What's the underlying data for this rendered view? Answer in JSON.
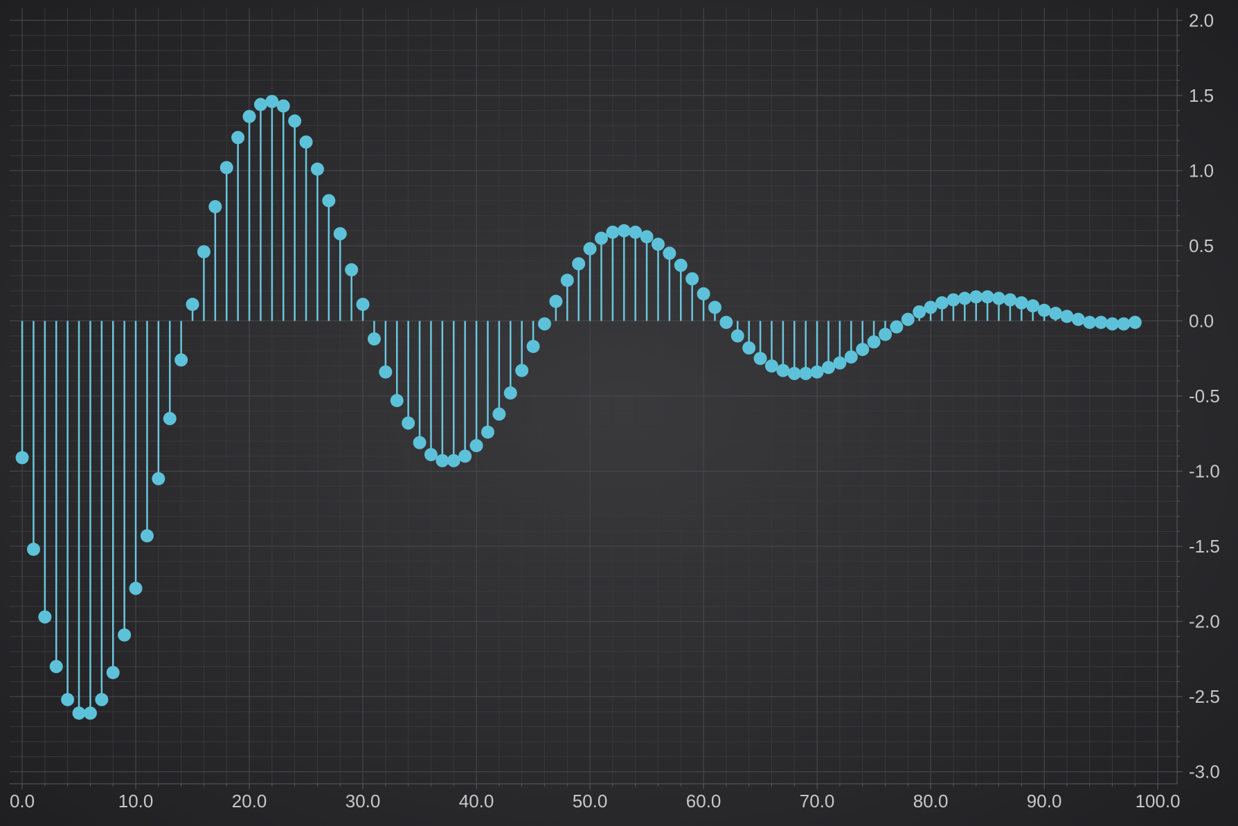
{
  "colors": {
    "stem": "#6cc6dd",
    "point": "#5dc2d9",
    "tick_label": "#c8c8c8",
    "grid_major": "#4a4a4e",
    "grid_minor": "#38383b",
    "axis_line": "#5a5a5e"
  },
  "chart_data": {
    "type": "stem",
    "title": "",
    "xlabel": "",
    "ylabel": "",
    "xlim": [
      -1.1,
      101.7
    ],
    "ylim": [
      -3.08,
      2.08
    ],
    "y_axis_position": "right",
    "grid": true,
    "x_ticks": [
      0,
      10,
      20,
      30,
      40,
      50,
      60,
      70,
      80,
      90,
      100
    ],
    "x_tick_labels": [
      "0.0",
      "10.0",
      "20.0",
      "30.0",
      "40.0",
      "50.0",
      "60.0",
      "70.0",
      "80.0",
      "90.0",
      "100.0"
    ],
    "y_ticks": [
      2.0,
      1.5,
      1.0,
      0.5,
      0.0,
      -0.5,
      -1.0,
      -1.5,
      -2.0,
      -2.5,
      -3.0
    ],
    "y_tick_labels": [
      "2.0",
      "1.5",
      "1.0",
      "0.5",
      "0.0",
      "-0.5",
      "-1.0",
      "-1.5",
      "-2.0",
      "-2.5",
      "-3.0"
    ],
    "series": [
      {
        "x": [
          0,
          1,
          2,
          3,
          4,
          5,
          6,
          7,
          8,
          9,
          10,
          11,
          12,
          13,
          14,
          15,
          16,
          17,
          18,
          19,
          20,
          21,
          22,
          23,
          24,
          25,
          26,
          27,
          28,
          29,
          30,
          31,
          32,
          33,
          34,
          35,
          36,
          37,
          38,
          39,
          40,
          41,
          42,
          43,
          44,
          45,
          46,
          47,
          48,
          49,
          50,
          51,
          52,
          53,
          54,
          55,
          56,
          57,
          58,
          59,
          60,
          61,
          62,
          63,
          64,
          65,
          66,
          67,
          68,
          69,
          70,
          71,
          72,
          73,
          74,
          75,
          76,
          77,
          78,
          79,
          80,
          81,
          82,
          83,
          84,
          85,
          86,
          87,
          88,
          89,
          90,
          91,
          92,
          93,
          94,
          95,
          96,
          97,
          98
        ],
        "y": [
          -0.91,
          -1.52,
          -1.97,
          -2.3,
          -2.52,
          -2.61,
          -2.61,
          -2.52,
          -2.34,
          -2.09,
          -1.78,
          -1.43,
          -1.05,
          -0.65,
          -0.26,
          0.11,
          0.46,
          0.76,
          1.02,
          1.22,
          1.36,
          1.44,
          1.46,
          1.43,
          1.33,
          1.19,
          1.01,
          0.8,
          0.58,
          0.34,
          0.11,
          -0.12,
          -0.34,
          -0.53,
          -0.68,
          -0.81,
          -0.89,
          -0.93,
          -0.93,
          -0.9,
          -0.83,
          -0.74,
          -0.62,
          -0.48,
          -0.33,
          -0.17,
          -0.02,
          0.13,
          0.27,
          0.38,
          0.48,
          0.55,
          0.59,
          0.6,
          0.59,
          0.56,
          0.51,
          0.45,
          0.37,
          0.28,
          0.18,
          0.09,
          -0.01,
          -0.1,
          -0.18,
          -0.25,
          -0.3,
          -0.33,
          -0.35,
          -0.35,
          -0.34,
          -0.31,
          -0.28,
          -0.24,
          -0.19,
          -0.14,
          -0.09,
          -0.04,
          0.01,
          0.06,
          0.09,
          0.12,
          0.14,
          0.15,
          0.16,
          0.16,
          0.15,
          0.14,
          0.12,
          0.1,
          0.07,
          0.05,
          0.03,
          0.01,
          -0.01,
          -0.01,
          -0.02,
          -0.02,
          -0.01
        ]
      }
    ]
  }
}
